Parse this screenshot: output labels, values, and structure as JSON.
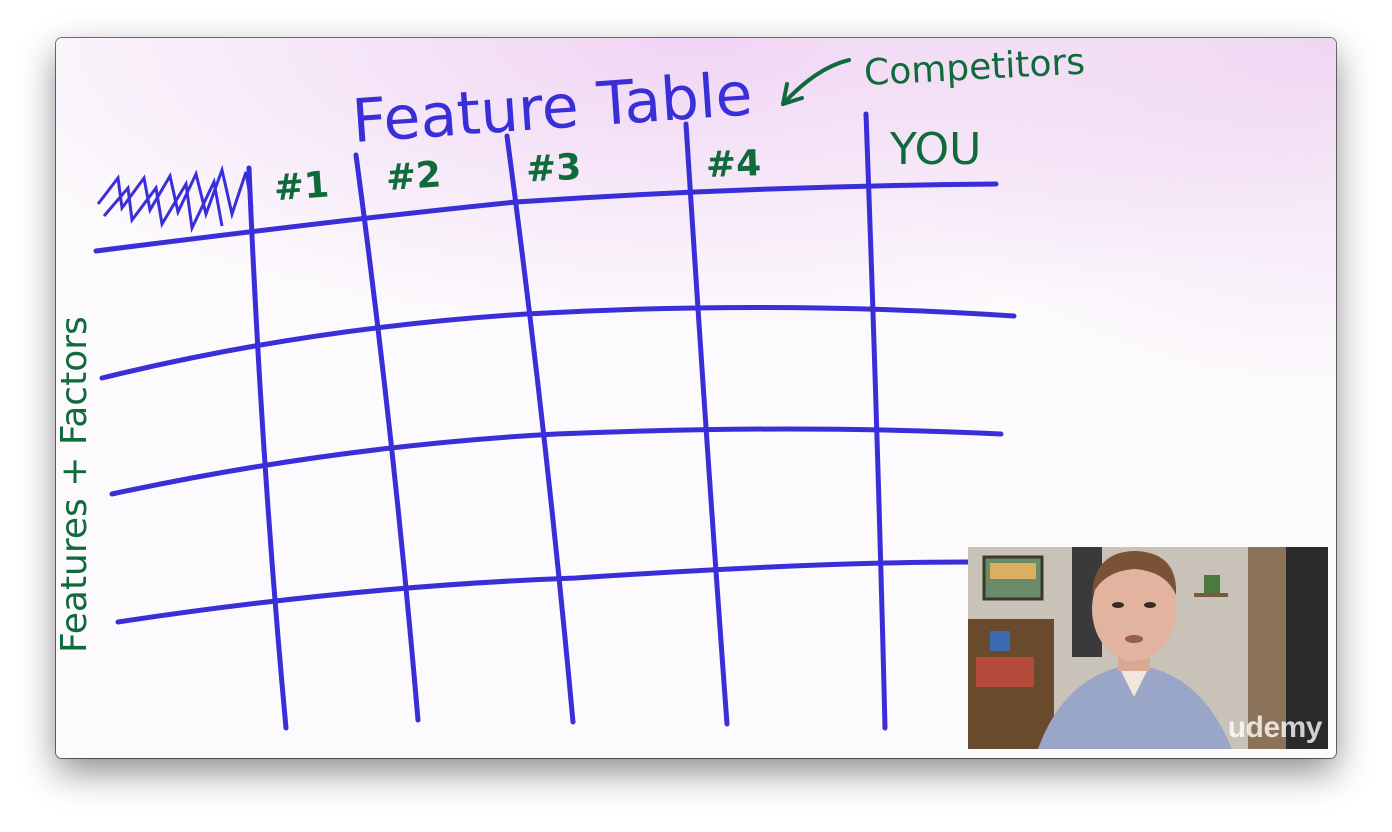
{
  "board": {
    "title": "Feature Table",
    "competitors_note": "Competitors",
    "columns": [
      "#1",
      "#2",
      "#3",
      "#4",
      "YOU"
    ],
    "row_axis_label": "Features + Factors",
    "colors": {
      "grid": "#3a2ed8",
      "marker_green": "#0f6a3c",
      "title_blue": "#3a2ed8"
    }
  },
  "presenter": {
    "watermark": "udemy"
  }
}
